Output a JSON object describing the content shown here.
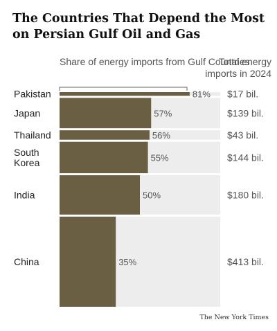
{
  "title": "The Countries That Depend the Most on Persian Gulf Oil and Gas",
  "column_headers": {
    "share": "Share of energy imports from Gulf Countries",
    "total": "Total energy imports in 2024"
  },
  "colors": {
    "bar": "#6a5e43",
    "track": "#ededed",
    "text": "#222222",
    "muted": "#555555"
  },
  "footer": "The New York Times",
  "chart_data": {
    "type": "bar",
    "orientation": "horizontal",
    "title": "The Countries That Depend the Most on Persian Gulf Oil and Gas",
    "categories": [
      "Pakistan",
      "Japan",
      "Thailand",
      "South Korea",
      "India",
      "China"
    ],
    "category_lines": [
      [
        "Pakistan"
      ],
      [
        "Japan"
      ],
      [
        "Thailand"
      ],
      [
        "South",
        "Korea"
      ],
      [
        "India"
      ],
      [
        "China"
      ]
    ],
    "values": [
      81,
      57,
      56,
      55,
      50,
      35
    ],
    "value_labels": [
      "81%",
      "57%",
      "56%",
      "55%",
      "50%",
      "35%"
    ],
    "totals": [
      17,
      139,
      43,
      144,
      180,
      413
    ],
    "total_labels": [
      "$17 bil.",
      "$139 bil.",
      "$43 bil.",
      "$144 bil.",
      "$180 bil.",
      "$413 bil."
    ],
    "xlim": [
      0,
      100
    ],
    "unit_x": "%",
    "unit_total": "billion dollars",
    "bar_height_encodes": "total energy imports in 2024"
  }
}
